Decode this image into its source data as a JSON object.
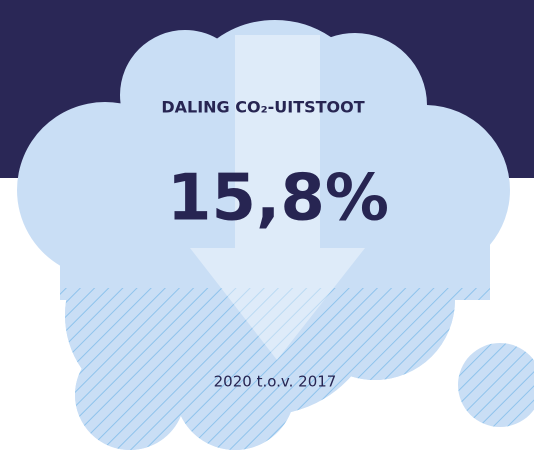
{
  "infographic": {
    "label": "DALING CO₂-UITSTOOT",
    "value": "15,8%",
    "period": "2020 t.o.v. 2017"
  }
}
